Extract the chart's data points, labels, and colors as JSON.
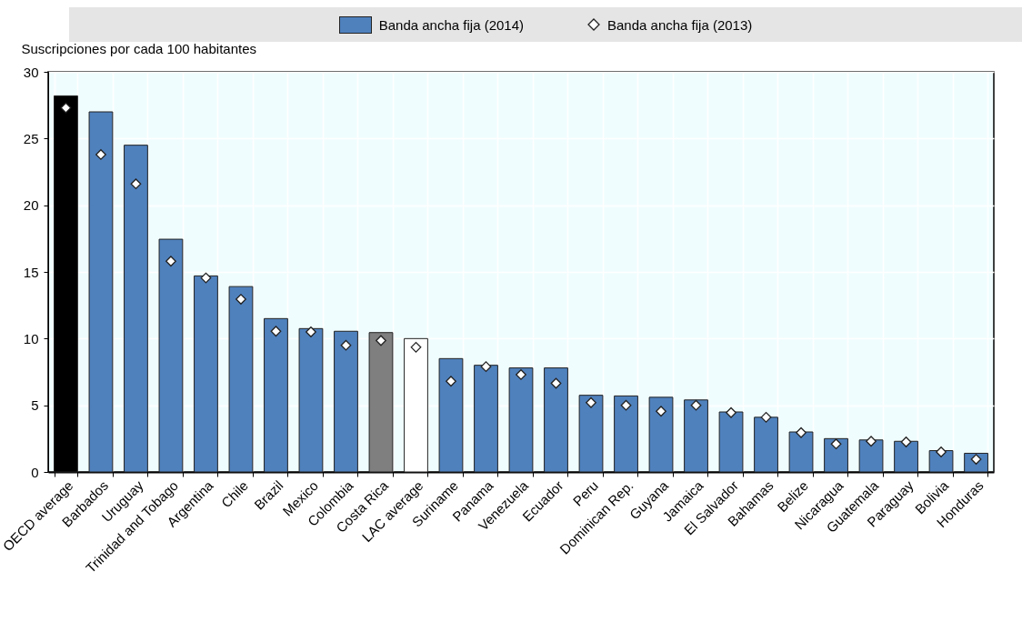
{
  "chart_data": {
    "type": "bar",
    "ylabel": "Suscripciones por cada 100 habitantes",
    "categories": [
      "OECD average",
      "Barbados",
      "Uruguay",
      "Trinidad and Tobago",
      "Argentina",
      "Chile",
      "Brazil",
      "Mexico",
      "Colombia",
      "Costa Rica",
      "LAC average",
      "Suriname",
      "Panama",
      "Venezuela",
      "Ecuador",
      "Peru",
      "Dominican Rep.",
      "Guyana",
      "Jamaica",
      "El Salvador",
      "Bahamas",
      "Belize",
      "Nicaragua",
      "Guatemala",
      "Paraguay",
      "Bolivia",
      "Honduras"
    ],
    "series": [
      {
        "name": "Banda ancha fija (2014)",
        "color": "#4f81bd",
        "colors": [
          "#000000",
          "#4f81bd",
          "#4f81bd",
          "#4f81bd",
          "#4f81bd",
          "#4f81bd",
          "#4f81bd",
          "#4f81bd",
          "#4f81bd",
          "#7f7f7f",
          "#ffffff",
          "#4f81bd",
          "#4f81bd",
          "#4f81bd",
          "#4f81bd",
          "#4f81bd",
          "#4f81bd",
          "#4f81bd",
          "#4f81bd",
          "#4f81bd",
          "#4f81bd",
          "#4f81bd",
          "#4f81bd",
          "#4f81bd",
          "#4f81bd",
          "#4f81bd",
          "#4f81bd"
        ],
        "values": [
          28.2,
          27.0,
          24.5,
          17.45,
          14.7,
          13.9,
          11.5,
          10.75,
          10.55,
          10.45,
          10.0,
          8.5,
          8.0,
          7.8,
          7.8,
          5.75,
          5.7,
          5.6,
          5.4,
          4.5,
          4.1,
          3.0,
          2.5,
          2.4,
          2.3,
          1.6,
          1.4
        ]
      },
      {
        "name": "Banda ancha fija (2013)",
        "type": "scatter",
        "marker": "diamond",
        "color": "#ffffff",
        "values": [
          27.3,
          23.8,
          21.6,
          15.8,
          14.55,
          12.95,
          10.55,
          10.5,
          9.5,
          9.85,
          9.35,
          6.8,
          7.9,
          7.3,
          6.65,
          5.2,
          5.0,
          4.55,
          5.0,
          4.45,
          4.1,
          2.95,
          2.1,
          2.3,
          2.25,
          1.5,
          0.95
        ]
      }
    ],
    "ylim": [
      0,
      30
    ],
    "yticks": [
      0,
      5,
      10,
      15,
      20,
      25,
      30
    ],
    "grid": true,
    "legend": "top"
  }
}
